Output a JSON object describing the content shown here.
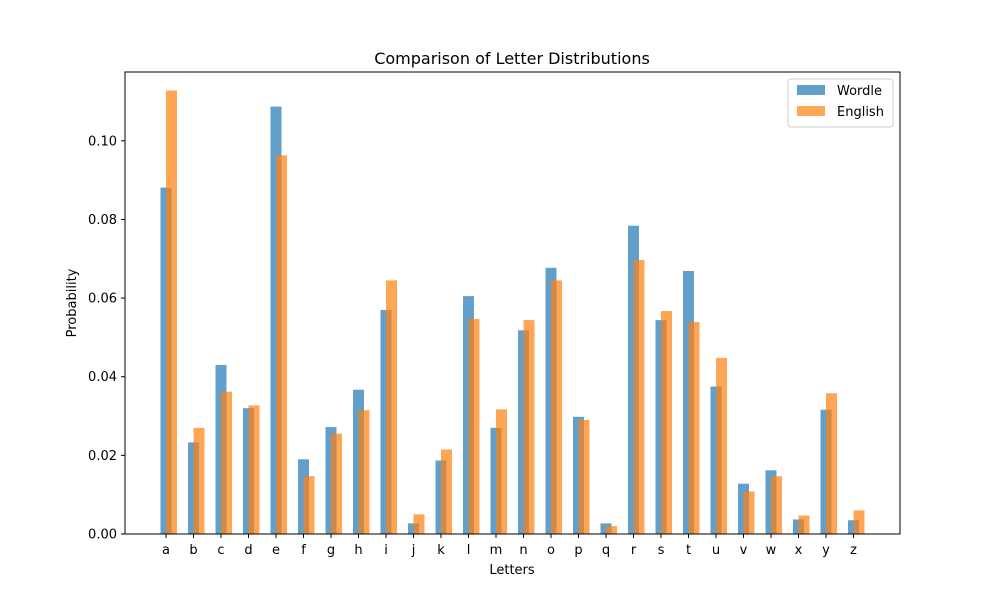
{
  "chart_data": {
    "type": "bar",
    "title": "Comparison of Letter Distributions",
    "xlabel": "Letters",
    "ylabel": "Probability",
    "ylim": [
      0,
      0.1175
    ],
    "yticks": [
      0.0,
      0.02,
      0.04,
      0.06,
      0.08,
      0.1
    ],
    "ytick_labels": [
      "0.00",
      "0.02",
      "0.04",
      "0.06",
      "0.08",
      "0.10"
    ],
    "legend_position": "top-right",
    "grid": false,
    "categories": [
      "a",
      "b",
      "c",
      "d",
      "e",
      "f",
      "g",
      "h",
      "i",
      "j",
      "k",
      "l",
      "m",
      "n",
      "o",
      "p",
      "q",
      "r",
      "s",
      "t",
      "u",
      "v",
      "w",
      "x",
      "y",
      "z"
    ],
    "series": [
      {
        "name": "Wordle",
        "color": "#1f77b4",
        "values": [
          0.0881,
          0.0233,
          0.043,
          0.032,
          0.1087,
          0.019,
          0.0272,
          0.0367,
          0.057,
          0.0027,
          0.0187,
          0.0605,
          0.027,
          0.0518,
          0.0677,
          0.0298,
          0.0027,
          0.0784,
          0.0544,
          0.0669,
          0.0375,
          0.0128,
          0.0162,
          0.0037,
          0.0316,
          0.0035
        ]
      },
      {
        "name": "English",
        "color": "#ff7f0e",
        "values": [
          0.1128,
          0.027,
          0.0362,
          0.0327,
          0.0963,
          0.0147,
          0.0255,
          0.0315,
          0.0645,
          0.005,
          0.0215,
          0.0547,
          0.0317,
          0.0544,
          0.0645,
          0.029,
          0.002,
          0.0697,
          0.0567,
          0.0539,
          0.0448,
          0.0108,
          0.0147,
          0.0047,
          0.0358,
          0.006
        ]
      }
    ]
  }
}
